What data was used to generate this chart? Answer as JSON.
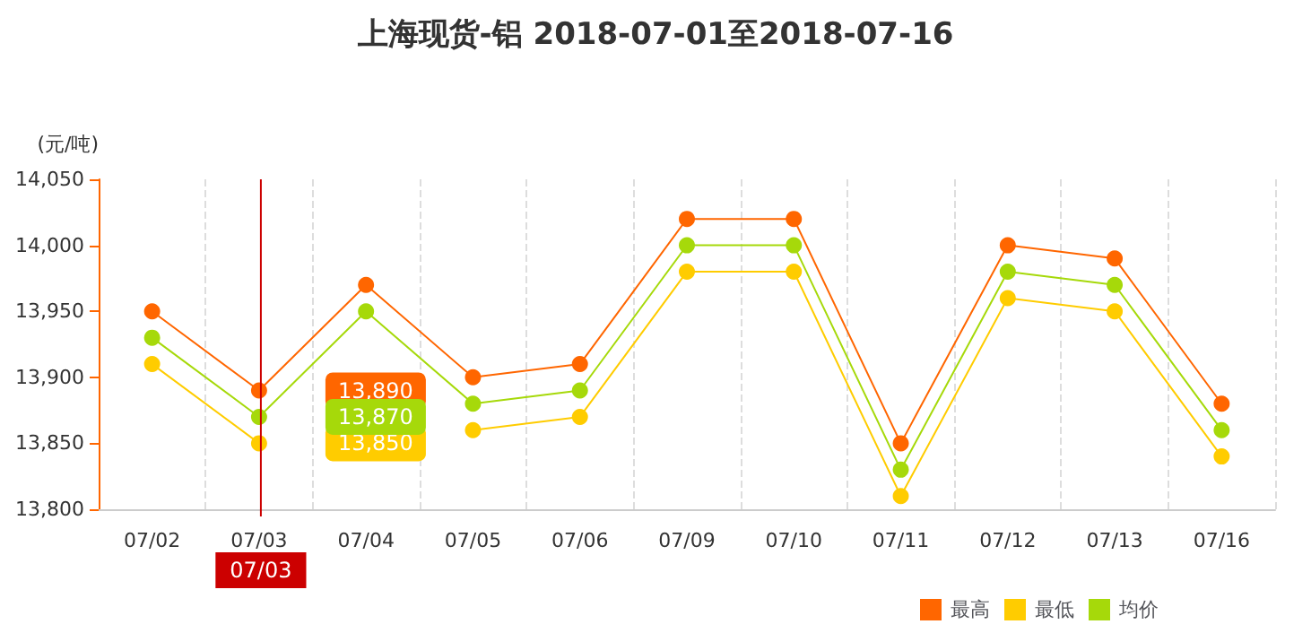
{
  "chart_data": {
    "type": "line",
    "title": "上海现货-铝 2018-07-01至2018-07-16",
    "ylabel": "(元/吨)",
    "categories": [
      "07/02",
      "07/03",
      "07/04",
      "07/05",
      "07/06",
      "07/09",
      "07/10",
      "07/11",
      "07/12",
      "07/13",
      "07/16"
    ],
    "series": [
      {
        "name": "最高",
        "color": "#ff6600",
        "values": [
          13950,
          13890,
          13970,
          13900,
          13910,
          14020,
          14020,
          13850,
          14000,
          13990,
          13880
        ]
      },
      {
        "name": "最低",
        "color": "#ffcc00",
        "values": [
          13910,
          13850,
          null,
          13860,
          13870,
          13980,
          13980,
          13810,
          13960,
          13950,
          13840
        ]
      },
      {
        "name": "均价",
        "color": "#a6d90a",
        "values": [
          13930,
          13870,
          13950,
          13880,
          13890,
          14000,
          14000,
          13830,
          13980,
          13970,
          13860
        ]
      }
    ],
    "ylim": [
      13800,
      14050
    ],
    "yticks": [
      {
        "value": 13800,
        "label": "13,800"
      },
      {
        "value": 13850,
        "label": "13,850"
      },
      {
        "value": 13900,
        "label": "13,900"
      },
      {
        "value": 13950,
        "label": "13,950"
      },
      {
        "value": 14000,
        "label": "14,000"
      },
      {
        "value": 14050,
        "label": "14,050"
      }
    ],
    "ref_lines": [
      {
        "axis": "x",
        "value": "07/03",
        "label": "07/03",
        "color": "#cc0000"
      }
    ],
    "annotations": [
      "13,890",
      "13,850",
      "13,870"
    ],
    "grid": "x",
    "legend": "bottom right",
    "marker": "circle",
    "line_style": "solid"
  }
}
